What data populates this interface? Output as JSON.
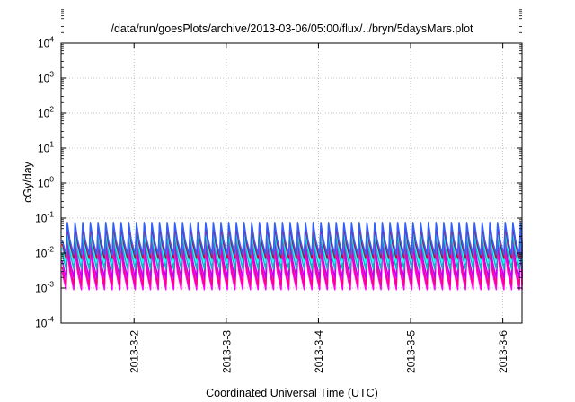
{
  "chart_data": {
    "type": "line",
    "title": "/data/run/goesPlots/archive/2013-03-06/05:00/flux/../bryn/5daysMars.plot",
    "xlabel": "Coordinated Universal Time (UTC)",
    "ylabel": "cGy/day",
    "y_scale": "log",
    "ylim": [
      0.0001,
      10000
    ],
    "xlim": [
      "2013-03-01 05:00",
      "2013-03-06 05:00"
    ],
    "x_ticks": [
      "2013-3-2",
      "2013-3-3",
      "2013-3-4",
      "2013-3-5",
      "2013-3-6"
    ],
    "x_tick_values": [
      "2013-03-02 00:00",
      "2013-03-03 00:00",
      "2013-03-04 00:00",
      "2013-03-05 00:00",
      "2013-03-06 00:00"
    ],
    "y_ticks": [
      {
        "base": "10",
        "exp": "4"
      },
      {
        "base": "10",
        "exp": "3"
      },
      {
        "base": "10",
        "exp": "2"
      },
      {
        "base": "10",
        "exp": "1"
      },
      {
        "base": "10",
        "exp": "0"
      },
      {
        "base": "10",
        "exp": "-1"
      },
      {
        "base": "10",
        "exp": "-2"
      },
      {
        "base": "10",
        "exp": "-3"
      },
      {
        "base": "10",
        "exp": "-4"
      }
    ],
    "grid": true,
    "grid_style": "dotted",
    "pattern": "periodic sawtooth, ~12 cycles per day",
    "cycles_per_day": 12,
    "series": [
      {
        "color": "#ff00ff",
        "peak": 0.012,
        "trough": 0.0009
      },
      {
        "color": "#ff0080",
        "peak": 0.017,
        "trough": 0.0012
      },
      {
        "color": "#c000ff",
        "peak": 0.024,
        "trough": 0.0019
      },
      {
        "color": "#00c0c0",
        "peak": 0.035,
        "trough": 0.0035
      },
      {
        "color": "#00ffff",
        "peak": 0.045,
        "trough": 0.0055
      },
      {
        "color": "#d00030",
        "peak": 0.06,
        "trough": 0.007
      },
      {
        "color": "#3060ff",
        "peak": 0.075,
        "trough": 0.009
      }
    ]
  }
}
